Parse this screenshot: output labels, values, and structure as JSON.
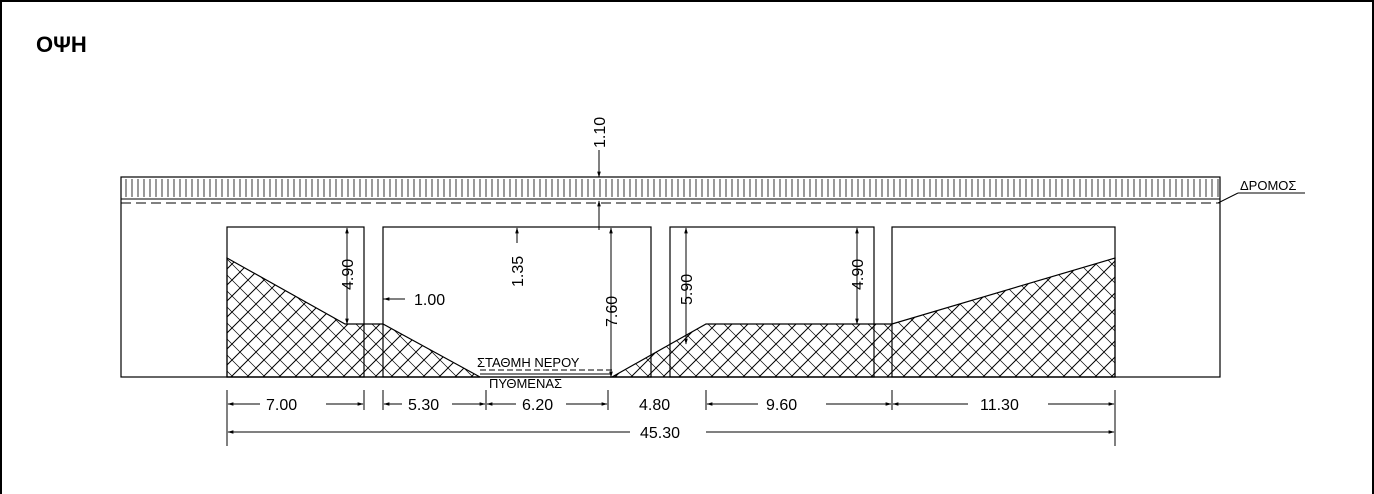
{
  "title": "ΟΨΗ",
  "labels": {
    "road": "ΔΡΟΜΟΣ",
    "water_level": "ΣΤΑΘΜΗ ΝΕΡΟΥ",
    "riverbed": "ΠΥΘΜΕΝΑΣ"
  },
  "vertical_dims": {
    "deck_thickness": "1.10",
    "left_pier_height": "4.90",
    "pier_top_gap": "1.35",
    "clearance": "7.60",
    "right_opening": "5.90",
    "right_pier_height": "4.90"
  },
  "horizontal_dims": {
    "pier_width": "1.00",
    "span_1": "7.00",
    "span_2": "5.30",
    "span_3": "6.20",
    "span_4": "4.80",
    "span_5": "9.60",
    "span_6": "11.30",
    "total": "45.30"
  }
}
